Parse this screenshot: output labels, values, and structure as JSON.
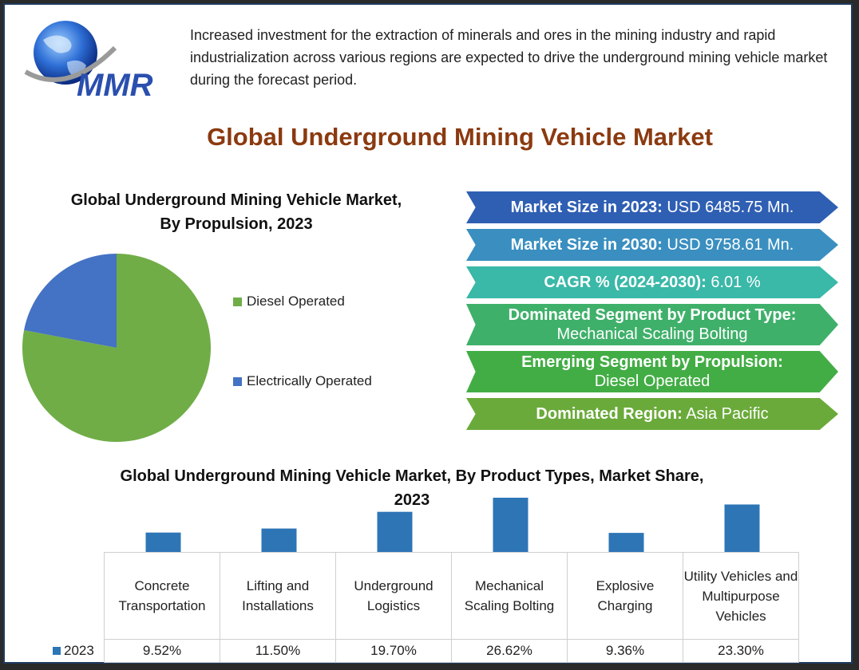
{
  "logo": {
    "text": "MMR",
    "icon": "globe-icon"
  },
  "intro_text": "Increased investment for the extraction of minerals and ores in the mining industry and rapid industrialization across various regions are expected to drive the underground mining vehicle market during the forecast period.",
  "main_title": "Global Underground Mining Vehicle Market",
  "stats": [
    {
      "label": "Market Size in 2023:",
      "value": "USD 6485.75 Mn.",
      "color": "#2f5fb3"
    },
    {
      "label": "Market Size in 2030:",
      "value": "USD 9758.61 Mn.",
      "color": "#3a8fc0"
    },
    {
      "label": "CAGR % (2024-2030):",
      "value": "6.01 %",
      "color": "#3ab8a8"
    },
    {
      "label": "Dominated Segment by Product Type:",
      "value": "Mechanical Scaling Bolting",
      "color": "#3fb06a"
    },
    {
      "label": "Emerging Segment by Propulsion:",
      "value": "Diesel Operated",
      "color": "#43ad45"
    },
    {
      "label": "Dominated Region:",
      "value": "Asia Pacific",
      "color": "#6aaa3a"
    }
  ],
  "chart_data": [
    {
      "type": "pie",
      "title": "Global Underground Mining Vehicle Market, By Propulsion, 2023",
      "categories": [
        "Diesel Operated",
        "Electrically Operated"
      ],
      "values": [
        78,
        22
      ],
      "colors": [
        "#70ad47",
        "#4472c4"
      ],
      "legend": "right"
    },
    {
      "type": "bar",
      "title": "Global Underground Mining Vehicle Market, By Product Types, Market Share, 2023",
      "categories": [
        "Concrete Transportation",
        "Lifting and Installations",
        "Underground Logistics",
        "Mechanical Scaling Bolting",
        "Explosive Charging",
        "Utility Vehicles and Multipurpose Vehicles"
      ],
      "series": [
        {
          "name": "2023",
          "values": [
            9.52,
            11.5,
            19.7,
            26.62,
            9.36,
            23.3
          ],
          "labels": [
            "9.52%",
            "11.50%",
            "19.70%",
            "26.62%",
            "9.36%",
            "23.30%"
          ]
        }
      ],
      "color": "#2e75b6",
      "legend": "data-table"
    }
  ]
}
